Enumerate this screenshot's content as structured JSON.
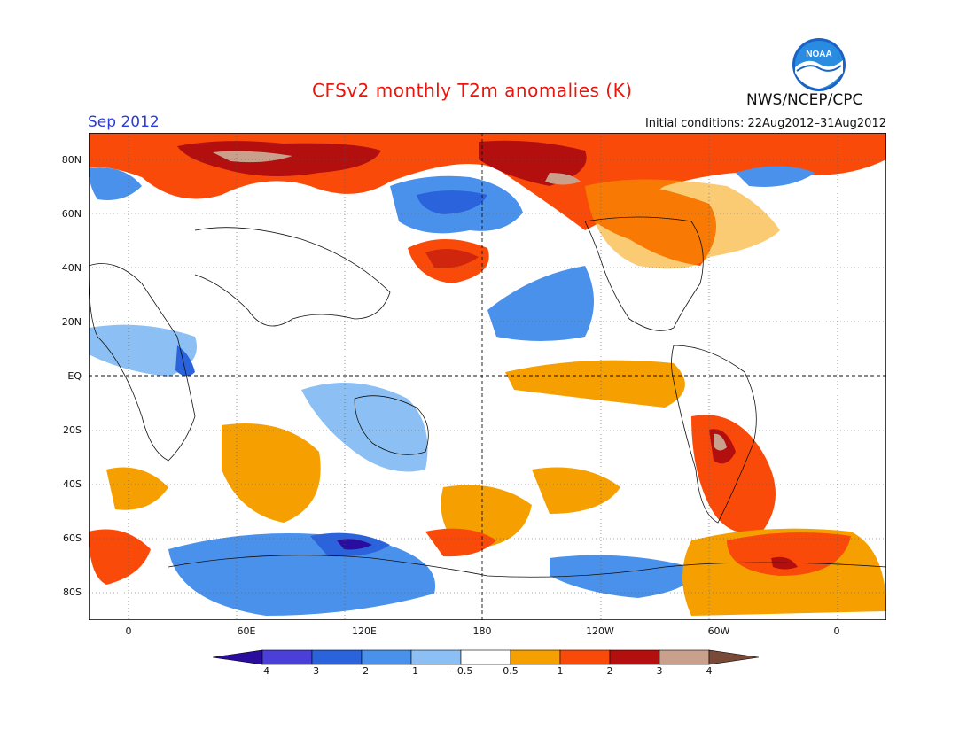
{
  "header": {
    "title": "CFSv2 monthly T2m anomalies (K)",
    "month": "Sep 2012",
    "initial_conditions": "Initial conditions: 22Aug2012–31Aug2012",
    "agency": "NWS/NCEP/CPC",
    "logo_text": "NOAA"
  },
  "axes": {
    "latitude_labels": [
      "80N",
      "60N",
      "40N",
      "20N",
      "EQ",
      "20S",
      "40S",
      "60S",
      "80S"
    ],
    "longitude_labels": [
      "0",
      "60E",
      "120E",
      "180",
      "120W",
      "60W",
      "0"
    ]
  },
  "colorbar": {
    "labels": [
      "−4",
      "−3",
      "−2",
      "−1",
      "−0.5",
      "0.5",
      "1",
      "2",
      "3",
      "4"
    ],
    "colors": [
      "#2a0c9e",
      "#4a3fd6",
      "#2a63dc",
      "#4a91ec",
      "#8cc0f5",
      "#ffffff",
      "#f5a000",
      "#fa4a0a",
      "#b30f0f",
      "#c9a08c",
      "#7a4a38"
    ]
  },
  "colors": {
    "title": "#e8160c",
    "month": "#2a3be0",
    "cold_strong": "#2a63dc",
    "cold": "#4a91ec",
    "cold_weak": "#8cc0f5",
    "warm_weak": "#f5a000",
    "warm": "#fa4a0a",
    "warm_strong": "#b30f0f",
    "warm_extreme": "#c9a08c"
  }
}
